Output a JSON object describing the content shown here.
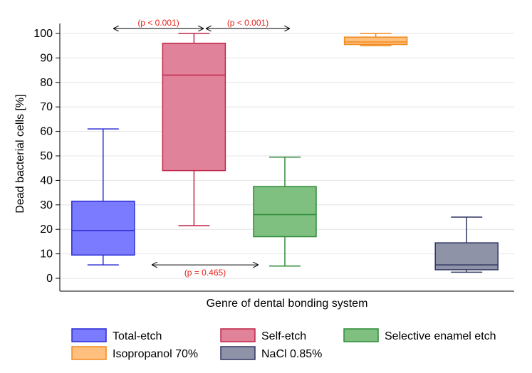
{
  "chart_data": {
    "type": "boxplot",
    "title": "",
    "xlabel": "Genre of dental bonding system",
    "ylabel": "Dead bacterial cells [%]",
    "ylim": [
      -3,
      104
    ],
    "yticks": [
      0,
      10,
      20,
      30,
      40,
      50,
      60,
      70,
      80,
      90,
      100
    ],
    "grid": "horizontal",
    "legend_position": "bottom",
    "series": [
      {
        "name": "Total-etch",
        "min": 5.5,
        "q1": 9.5,
        "median": 19.5,
        "q3": 31.5,
        "max": 61,
        "fill": "#7b7bff",
        "stroke": "#2b2bd6"
      },
      {
        "name": "Self-etch",
        "min": 21.5,
        "q1": 44,
        "median": 83,
        "q3": 96,
        "max": 100,
        "fill": "#e0829a",
        "stroke": "#c0264a"
      },
      {
        "name": "Selective enamel etch",
        "min": 5,
        "q1": 17,
        "median": 26,
        "q3": 37.5,
        "max": 49.5,
        "fill": "#7fbf7f",
        "stroke": "#2e8b3a"
      },
      {
        "name": "Isopropanol 70%",
        "min": 95,
        "q1": 95.5,
        "median": 96.5,
        "q3": 98.5,
        "max": 100,
        "fill": "#ffbf7f",
        "stroke": "#f08a1c"
      },
      {
        "name": "NaCl 0.85%",
        "min": 2.5,
        "q1": 3.5,
        "median": 5.5,
        "q3": 14.5,
        "max": 25,
        "fill": "#8f93a8",
        "stroke": "#2e3560"
      }
    ],
    "annotations": [
      {
        "text": "(p < 0.001)",
        "from": 0,
        "to": 1,
        "y": 102
      },
      {
        "text": "(p < 0.001)",
        "from": 1,
        "to": 2,
        "y": 102
      },
      {
        "text": "(p = 0.465)",
        "from": 0,
        "to": 2,
        "y": 5.5
      }
    ]
  }
}
